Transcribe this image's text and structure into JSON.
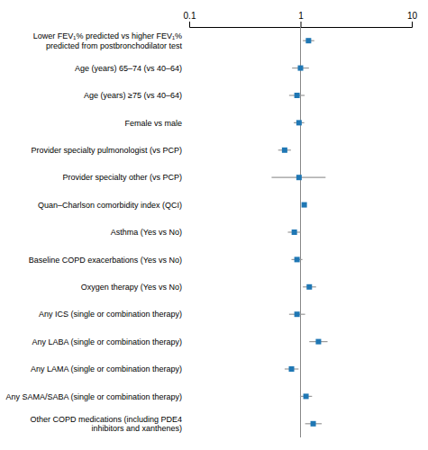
{
  "chart_data": {
    "type": "forest",
    "categories": [
      "Lower FEV₁% predicted vs higher FEV₁%\npredicted from postbronchodilator test",
      "Age (years) 65–74 (vs 40–64)",
      "Age (years) ≥75 (vs 40–64)",
      "Female vs male",
      "Provider specialty pulmonologist (vs PCP)",
      "Provider specialty other (vs PCP)",
      "Quan–Charlson comorbidity index (QCI)",
      "Asthma (Yes vs No)",
      "Baseline COPD exacerbations (Yes vs No)",
      "Oxygen therapy (Yes vs No)",
      "Any ICS (single or combination therapy)",
      "Any LABA (single or combination therapy)",
      "Any LAMA (single or combination therapy)",
      "Any SAMA/SABA (single or combination therapy)",
      "Other COPD medications (including PDE4\ninhibitors and xanthenes)"
    ],
    "values": [
      1.18,
      1.0,
      0.93,
      0.97,
      0.72,
      0.97,
      1.08,
      0.88,
      0.93,
      1.2,
      0.93,
      1.45,
      0.83,
      1.12,
      1.3
    ],
    "ci_low": [
      1.05,
      0.84,
      0.79,
      0.87,
      0.63,
      0.55,
      1.06,
      0.77,
      0.83,
      1.05,
      0.79,
      1.2,
      0.72,
      0.99,
      1.1
    ],
    "ci_high": [
      1.33,
      1.19,
      1.09,
      1.08,
      0.82,
      1.68,
      1.1,
      1.0,
      1.04,
      1.38,
      1.1,
      1.75,
      0.96,
      1.27,
      1.55
    ],
    "reference_line": 1,
    "log": "x",
    "xlim": [
      0.1,
      10
    ],
    "xticks": [
      0.1,
      1,
      10
    ],
    "grid": false,
    "tick_labels": "x"
  }
}
